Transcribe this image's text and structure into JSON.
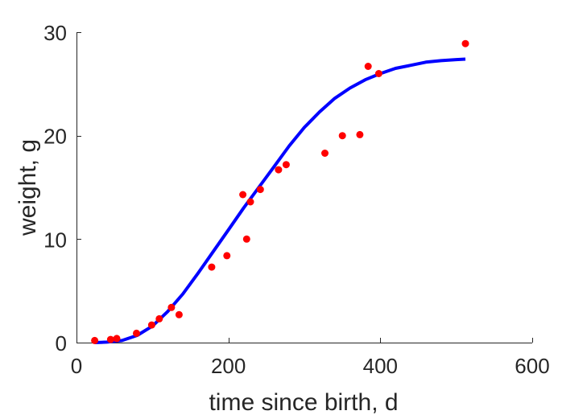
{
  "chart_data": {
    "type": "scatter",
    "title": "",
    "xlabel": "time since birth, d",
    "ylabel": "weight, g",
    "xlim": [
      0,
      600
    ],
    "ylim": [
      0,
      30
    ],
    "xticks": [
      0,
      200,
      400,
      600
    ],
    "yticks": [
      0,
      10,
      20,
      30
    ],
    "xtick_labels": [
      "0",
      "200",
      "400",
      "600"
    ],
    "ytick_labels": [
      "0",
      "10",
      "20",
      "30"
    ],
    "grid": false,
    "legend": "none",
    "series": [
      {
        "kind": "scatter",
        "color": "#ff0000",
        "points": [
          [
            24,
            0.2
          ],
          [
            45,
            0.3
          ],
          [
            53,
            0.4
          ],
          [
            79,
            0.9
          ],
          [
            99,
            1.7
          ],
          [
            109,
            2.3
          ],
          [
            125,
            3.4
          ],
          [
            135,
            2.7
          ],
          [
            178,
            7.3
          ],
          [
            198,
            8.4
          ],
          [
            219,
            14.3
          ],
          [
            224,
            10.0
          ],
          [
            229,
            13.6
          ],
          [
            242,
            14.8
          ],
          [
            266,
            16.7
          ],
          [
            276,
            17.2
          ],
          [
            327,
            18.3
          ],
          [
            350,
            20.0
          ],
          [
            373,
            20.1
          ],
          [
            384,
            26.7
          ],
          [
            398,
            26.0
          ],
          [
            512,
            28.9
          ]
        ]
      },
      {
        "kind": "line",
        "color": "#0000ff",
        "points": [
          [
            24,
            0.0
          ],
          [
            40,
            0.05
          ],
          [
            60,
            0.2
          ],
          [
            80,
            0.7
          ],
          [
            100,
            1.6
          ],
          [
            120,
            3.0
          ],
          [
            140,
            4.7
          ],
          [
            160,
            6.7
          ],
          [
            180,
            8.8
          ],
          [
            200,
            10.9
          ],
          [
            220,
            13.0
          ],
          [
            240,
            15.0
          ],
          [
            260,
            17.0
          ],
          [
            280,
            19.0
          ],
          [
            300,
            20.8
          ],
          [
            320,
            22.3
          ],
          [
            340,
            23.6
          ],
          [
            360,
            24.6
          ],
          [
            380,
            25.4
          ],
          [
            400,
            26.0
          ],
          [
            420,
            26.5
          ],
          [
            440,
            26.8
          ],
          [
            460,
            27.1
          ],
          [
            480,
            27.25
          ],
          [
            500,
            27.35
          ],
          [
            512,
            27.4
          ]
        ]
      }
    ]
  }
}
